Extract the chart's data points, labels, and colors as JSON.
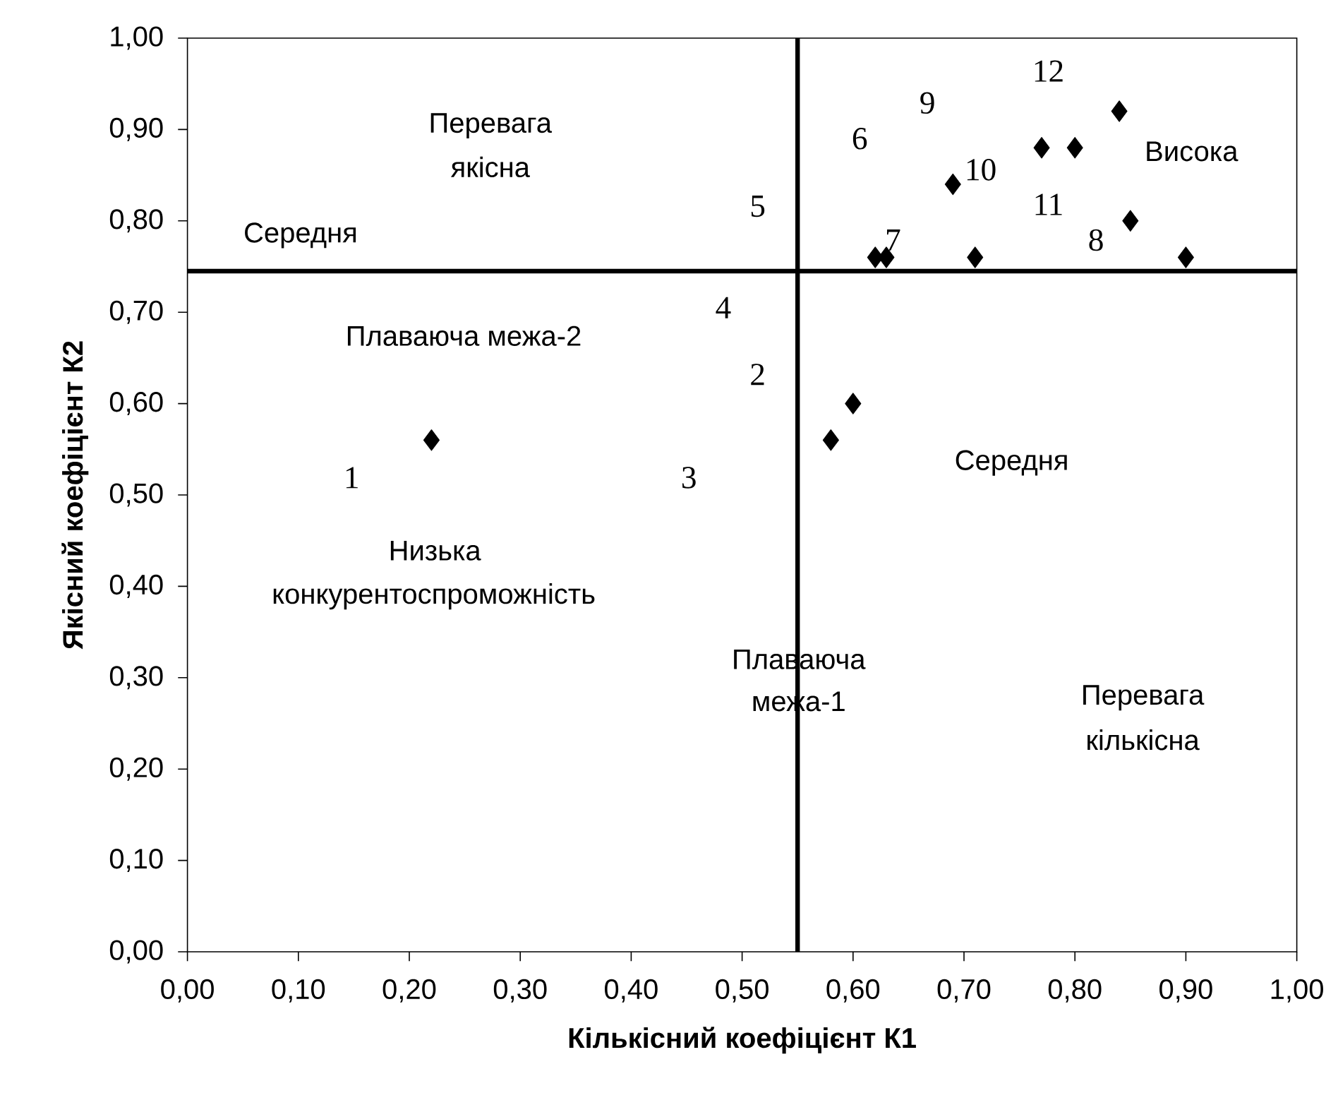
{
  "chart_data": {
    "type": "scatter",
    "xlabel": "Кількісний коефіцієнт К1",
    "ylabel": "Якісний коефіцієнт К2",
    "x": [
      0.22,
      0.58,
      0.6,
      0.62,
      0.63,
      0.71,
      0.69,
      0.77,
      0.8,
      0.84,
      0.85,
      0.9
    ],
    "series": [
      {
        "color": "#000000",
        "values": [
          0.56,
          0.56,
          0.6,
          0.76,
          0.76,
          0.76,
          0.84,
          0.88,
          0.88,
          0.92,
          0.8,
          0.76
        ]
      }
    ],
    "marker": "diamond",
    "xlim": [
      0,
      1
    ],
    "ylim": [
      0,
      1
    ],
    "xticks": [
      {
        "value": 0,
        "label": "0,00"
      },
      {
        "value": 0.1,
        "label": "0,10"
      },
      {
        "value": 0.2,
        "label": "0,20"
      },
      {
        "value": 0.3,
        "label": "0,30"
      },
      {
        "value": 0.4,
        "label": "0,40"
      },
      {
        "value": 0.5,
        "label": "0,50"
      },
      {
        "value": 0.6,
        "label": "0,60"
      },
      {
        "value": 0.7,
        "label": "0,70"
      },
      {
        "value": 0.8,
        "label": "0,80"
      },
      {
        "value": 0.9,
        "label": "0,90"
      },
      {
        "value": 1,
        "label": "1,00"
      }
    ],
    "yticks": [
      {
        "value": 0,
        "label": "0,00"
      },
      {
        "value": 0.1,
        "label": "0,10"
      },
      {
        "value": 0.2,
        "label": "0,20"
      },
      {
        "value": 0.3,
        "label": "0,30"
      },
      {
        "value": 0.4,
        "label": "0,40"
      },
      {
        "value": 0.5,
        "label": "0,50"
      },
      {
        "value": 0.6,
        "label": "0,60"
      },
      {
        "value": 0.7,
        "label": "0,70"
      },
      {
        "value": 0.8,
        "label": "0,80"
      },
      {
        "value": 0.9,
        "label": "0,90"
      },
      {
        "value": 1,
        "label": "1,00"
      }
    ],
    "ref_lines": [
      {
        "axis": "x",
        "value": 0.55,
        "color": "#000000"
      },
      {
        "axis": "y",
        "value": 0.745,
        "color": "#000000"
      }
    ],
    "annotations": [
      "Перевага",
      "якісна",
      "Середня",
      "Плаваюча межа-2",
      "Низька",
      "конкурентоспроможність",
      "Плаваюча",
      "межа-1",
      "Середня",
      "Висока",
      "Перевага",
      "кількісна",
      "1",
      "2",
      "3",
      "4",
      "5",
      "6",
      "7",
      "8",
      "9",
      "10",
      "11",
      "12"
    ]
  }
}
